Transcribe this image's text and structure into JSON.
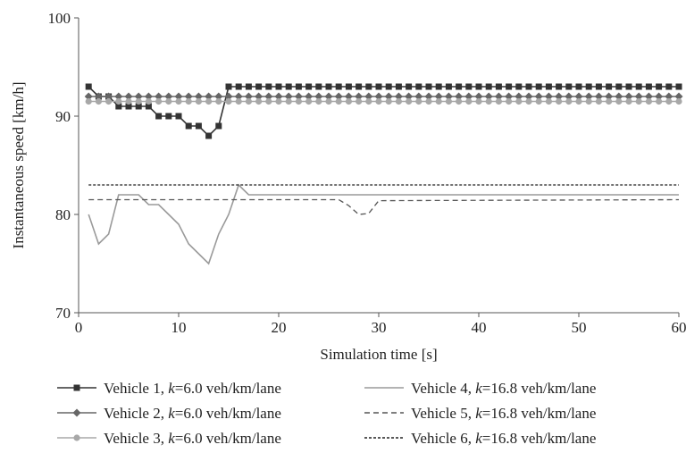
{
  "chart_data": {
    "type": "line",
    "title": "",
    "xlabel": "Simulation time [s]",
    "ylabel": "Instantaneous speed [km/h]",
    "xlim": [
      0,
      60
    ],
    "ylim": [
      70,
      100
    ],
    "xticks": [
      "0",
      "10",
      "20",
      "30",
      "40",
      "50",
      "60"
    ],
    "yticks": [
      "70",
      "80",
      "90",
      "100"
    ],
    "grid": false,
    "legend_position": "bottom",
    "series": [
      {
        "name": "Vehicle 1, k=6.0 veh/km/lane",
        "legend_prefix": "Vehicle 1, ",
        "legend_k": "k",
        "legend_suffix": "=6.0 veh/km/lane",
        "color": "#333333",
        "marker": "square",
        "dash": "solid",
        "x": [
          1,
          2,
          3,
          4,
          5,
          6,
          7,
          8,
          9,
          10,
          11,
          12,
          13,
          14,
          15,
          16,
          17,
          18,
          19,
          20,
          21,
          22,
          23,
          24,
          25,
          26,
          27,
          28,
          29,
          30,
          31,
          32,
          33,
          34,
          35,
          36,
          37,
          38,
          39,
          40,
          41,
          42,
          43,
          44,
          45,
          46,
          47,
          48,
          49,
          50,
          51,
          52,
          53,
          54,
          55,
          56,
          57,
          58,
          59,
          60
        ],
        "values": [
          93,
          92,
          92,
          91,
          91,
          91,
          91,
          90,
          90,
          90,
          89,
          89,
          88,
          89,
          93,
          93,
          93,
          93,
          93,
          93,
          93,
          93,
          93,
          93,
          93,
          93,
          93,
          93,
          93,
          93,
          93,
          93,
          93,
          93,
          93,
          93,
          93,
          93,
          93,
          93,
          93,
          93,
          93,
          93,
          93,
          93,
          93,
          93,
          93,
          93,
          93,
          93,
          93,
          93,
          93,
          93,
          93,
          93,
          93,
          93
        ]
      },
      {
        "name": "Vehicle 2, k=6.0 veh/km/lane",
        "legend_prefix": "Vehicle 2, ",
        "legend_k": "k",
        "legend_suffix": "=6.0 veh/km/lane",
        "color": "#666666",
        "marker": "diamond",
        "dash": "solid",
        "x_start": 1,
        "x_end": 60,
        "constant": 92
      },
      {
        "name": "Vehicle 3, k=6.0 veh/km/lane",
        "legend_prefix": "Vehicle 3, ",
        "legend_k": "k",
        "legend_suffix": "=6.0 veh/km/lane",
        "color": "#a8a8a8",
        "marker": "circle",
        "dash": "solid",
        "x_start": 1,
        "x_end": 60,
        "constant": 91.5
      },
      {
        "name": "Vehicle 4, k=16.8 veh/km/lane",
        "legend_prefix": "Vehicle 4, ",
        "legend_k": "k",
        "legend_suffix": "=16.8 veh/km/lane",
        "color": "#9a9a9a",
        "marker": "none",
        "dash": "solid",
        "x": [
          1,
          2,
          3,
          4,
          5,
          6,
          7,
          8,
          9,
          10,
          11,
          12,
          13,
          14,
          15,
          16,
          17,
          18,
          19,
          20,
          60
        ],
        "values": [
          80,
          77,
          78,
          82,
          82,
          82,
          81,
          81,
          80,
          79,
          77,
          76,
          75,
          78,
          80,
          83,
          82,
          82,
          82,
          82,
          82
        ]
      },
      {
        "name": "Vehicle 5, k=16.8 veh/km/lane",
        "legend_prefix": "Vehicle 5, ",
        "legend_k": "k",
        "legend_suffix": "=16.8 veh/km/lane",
        "color": "#555555",
        "marker": "none",
        "dash": "6,4",
        "x": [
          1,
          25,
          26,
          27,
          28,
          29,
          30,
          60
        ],
        "values": [
          81.5,
          81.5,
          81.5,
          80.9,
          80,
          80.1,
          81.4,
          81.5
        ]
      },
      {
        "name": "Vehicle 6, k=16.8 veh/km/lane",
        "legend_prefix": "Vehicle 6, ",
        "legend_k": "k",
        "legend_suffix": "=16.8 veh/km/lane",
        "color": "#222222",
        "marker": "none",
        "dash": "3,2",
        "x": [
          1,
          60
        ],
        "values": [
          83,
          83
        ]
      }
    ]
  }
}
